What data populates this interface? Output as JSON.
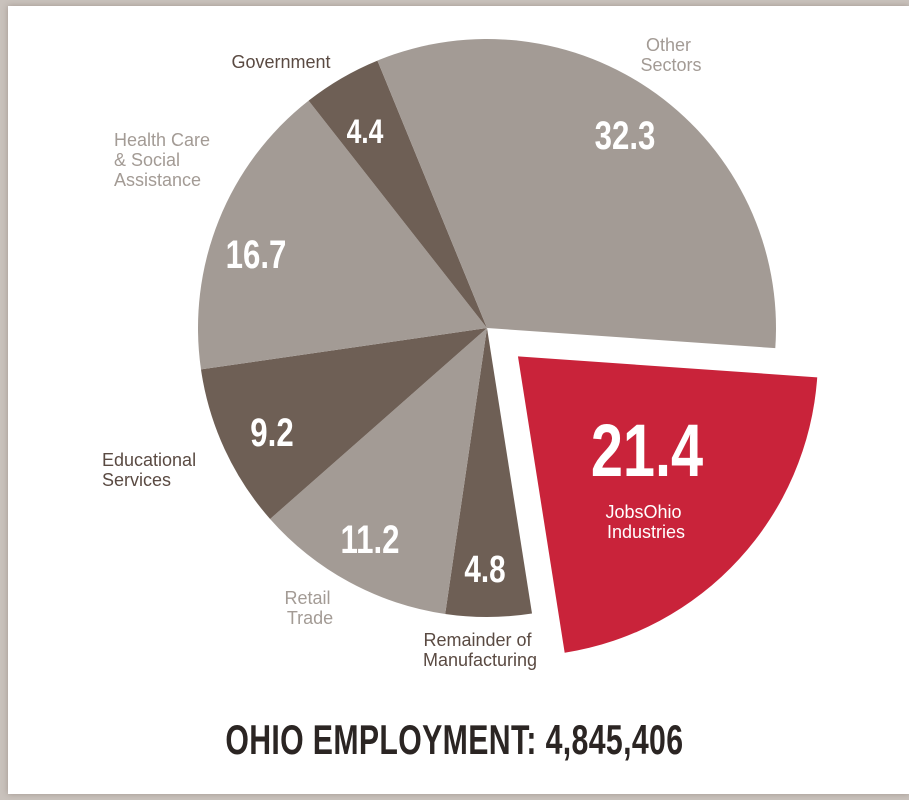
{
  "chart_data": {
    "type": "pie",
    "title": "OHIO EMPLOYMENT: 4,845,406",
    "slices": [
      {
        "label": "JobsOhio Industries",
        "value": 21.4,
        "color": "#c9233a",
        "exploded": true
      },
      {
        "label": "Remainder of Manufacturing",
        "value": 4.8,
        "color": "#6e5f55"
      },
      {
        "label": "Retail Trade",
        "value": 11.2,
        "color": "#a39b95"
      },
      {
        "label": "Educational Services",
        "value": 9.2,
        "color": "#6e5f55"
      },
      {
        "label": "Health Care & Social Assistance",
        "value": 16.7,
        "color": "#a39b95"
      },
      {
        "label": "Government",
        "value": 4.4,
        "color": "#6e5f55"
      },
      {
        "label": "Other Sectors",
        "value": 32.3,
        "color": "#a39b95"
      }
    ]
  },
  "labels": {
    "jobsohio": [
      "JobsOhio",
      "Industries"
    ],
    "manufacturing": [
      "Remainder of",
      "Manufacturing"
    ],
    "retail": [
      "Retail",
      "Trade"
    ],
    "education": [
      "Educational",
      "Services"
    ],
    "health": [
      "Health Care",
      "& Social",
      "Assistance"
    ],
    "government": [
      "Government"
    ],
    "other": [
      "Other",
      "Sectors"
    ]
  },
  "value_labels": {
    "jobsohio": "21.4",
    "manufacturing": "4.8",
    "retail": "11.2",
    "education": "9.2",
    "health": "16.7",
    "government": "4.4",
    "other": "32.3"
  },
  "colors": {
    "accent": "#c9233a",
    "dark_slice": "#6e5f55",
    "light_slice": "#a39b95",
    "label_dark": "#5a4a42",
    "label_light": "#a39b95"
  }
}
